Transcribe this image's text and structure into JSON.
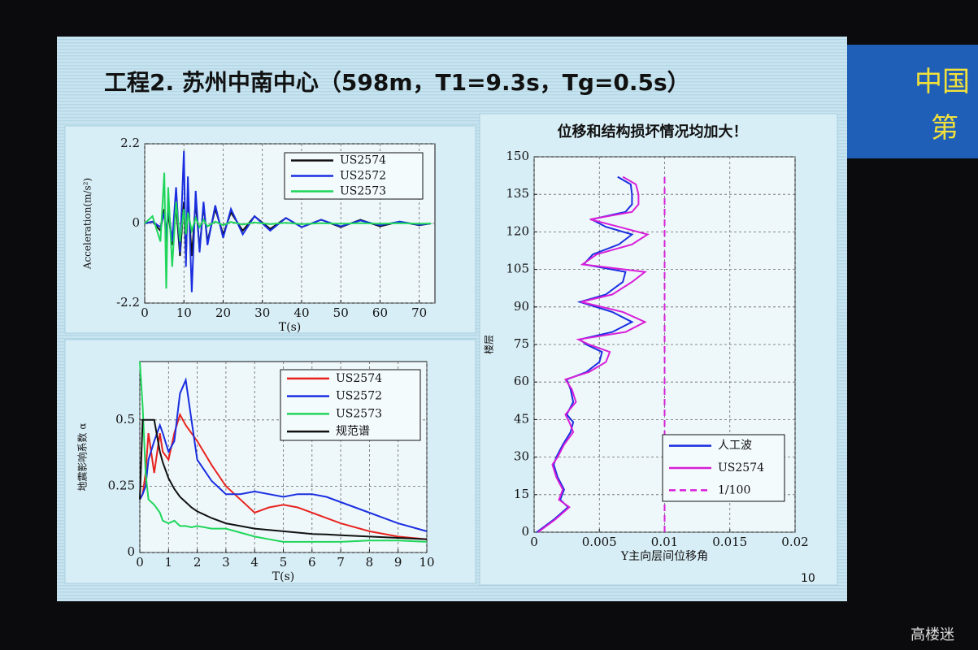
{
  "slide": {
    "title": "工程2. 苏州中南中心（598m，T1=9.3s，Tg=0.5s）",
    "page_number": "10",
    "banner": [
      "中国",
      "第"
    ]
  },
  "watermark": "高楼迷",
  "chart_data": [
    {
      "type": "line",
      "xlabel": "T(s)",
      "ylabel": "Acceleration(m/s²)",
      "xlim": [
        0,
        74
      ],
      "ylim": [
        -2.2,
        2.2
      ],
      "xticks": [
        0,
        10,
        20,
        30,
        40,
        50,
        60,
        70
      ],
      "yticks": [
        -2.2,
        0,
        2.2
      ],
      "grid": true,
      "x": [
        0,
        2,
        4,
        5,
        5.5,
        6,
        7,
        8,
        9,
        10,
        10.5,
        11,
        12,
        13,
        14,
        15,
        16,
        18,
        20,
        22,
        25,
        28,
        32,
        36,
        40,
        45,
        50,
        55,
        60,
        65,
        70,
        73
      ],
      "series": [
        {
          "name": "US2574",
          "color": "#111111",
          "values": [
            0,
            0.05,
            -0.2,
            0.4,
            -0.5,
            0.3,
            -0.6,
            0.5,
            -0.9,
            0.6,
            -1.0,
            0.8,
            -0.9,
            0.6,
            -0.7,
            0.5,
            -0.5,
            0.4,
            -0.3,
            0.3,
            -0.2,
            0.2,
            -0.15,
            0.15,
            -0.1,
            0.1,
            -0.1,
            0.1,
            -0.08,
            0.05,
            -0.05,
            0
          ]
        },
        {
          "name": "US2572",
          "color": "#1a2ee0",
          "values": [
            0,
            0.05,
            -0.1,
            0.3,
            -0.4,
            0.5,
            -0.5,
            1.0,
            -0.8,
            2.0,
            -1.2,
            1.3,
            -1.9,
            0.9,
            -0.8,
            0.6,
            -0.6,
            0.5,
            -0.4,
            0.4,
            -0.3,
            0.2,
            -0.2,
            0.15,
            -0.1,
            0.1,
            -0.08,
            0.08,
            -0.05,
            0.05,
            -0.04,
            0
          ]
        },
        {
          "name": "US2573",
          "color": "#1fd65a",
          "values": [
            0,
            0.2,
            -0.5,
            1.4,
            -1.8,
            1.0,
            -1.2,
            0.6,
            -0.5,
            0.4,
            -0.3,
            0.3,
            -0.2,
            0.15,
            -0.1,
            0.1,
            -0.08,
            0.05,
            -0.05,
            0.04,
            -0.03,
            0.03,
            -0.02,
            0.02,
            -0.02,
            0.01,
            -0.01,
            0.01,
            -0.01,
            0.01,
            -0.01,
            0
          ]
        }
      ]
    },
    {
      "type": "line",
      "xlabel": "T(s)",
      "ylabel": "地震影响系数 α",
      "xlim": [
        0,
        10
      ],
      "ylim": [
        0,
        0.72
      ],
      "xticks": [
        0,
        1,
        2,
        3,
        4,
        5,
        6,
        7,
        8,
        9,
        10
      ],
      "yticks": [
        0,
        0.25,
        0.5
      ],
      "grid": true,
      "x": [
        0,
        0.1,
        0.2,
        0.3,
        0.5,
        0.7,
        0.8,
        1,
        1.2,
        1.4,
        1.6,
        1.8,
        2,
        2.5,
        3,
        3.5,
        4,
        4.5,
        5,
        5.5,
        6,
        6.5,
        7,
        8,
        9,
        10
      ],
      "series": [
        {
          "name": "US2574",
          "color": "#e8231f",
          "values": [
            0.2,
            0.22,
            0.3,
            0.45,
            0.3,
            0.45,
            0.38,
            0.35,
            0.45,
            0.52,
            0.48,
            0.45,
            0.42,
            0.33,
            0.25,
            0.2,
            0.15,
            0.17,
            0.18,
            0.17,
            0.15,
            0.13,
            0.11,
            0.08,
            0.06,
            0.05
          ]
        },
        {
          "name": "US2572",
          "color": "#1a2ee0",
          "values": [
            0.2,
            0.22,
            0.25,
            0.35,
            0.42,
            0.48,
            0.45,
            0.38,
            0.42,
            0.6,
            0.65,
            0.5,
            0.35,
            0.27,
            0.22,
            0.22,
            0.23,
            0.22,
            0.21,
            0.22,
            0.22,
            0.21,
            0.19,
            0.15,
            0.11,
            0.08
          ]
        },
        {
          "name": "US2573",
          "color": "#1fd65a",
          "values": [
            0.72,
            0.55,
            0.3,
            0.2,
            0.18,
            0.15,
            0.12,
            0.11,
            0.12,
            0.1,
            0.1,
            0.095,
            0.1,
            0.09,
            0.09,
            0.075,
            0.06,
            0.05,
            0.04,
            0.04,
            0.04,
            0.04,
            0.04,
            0.045,
            0.045,
            0.04
          ]
        },
        {
          "name": "规范谱",
          "color": "#111111",
          "values": [
            0.2,
            0.5,
            0.5,
            0.5,
            0.5,
            0.38,
            0.34,
            0.28,
            0.24,
            0.21,
            0.19,
            0.17,
            0.155,
            0.13,
            0.11,
            0.1,
            0.09,
            0.085,
            0.08,
            0.075,
            0.07,
            0.068,
            0.065,
            0.06,
            0.055,
            0.05
          ]
        }
      ]
    },
    {
      "type": "profile",
      "title": "位移和结构损坏情况均加大！",
      "xlabel": "Y主向层间位移角",
      "ylabel": "楼层",
      "xlim": [
        0,
        0.02
      ],
      "ylim": [
        0,
        150
      ],
      "xticks": [
        0,
        0.005,
        0.01,
        0.015,
        0.02
      ],
      "yticks": [
        0,
        15,
        30,
        45,
        60,
        75,
        90,
        105,
        120,
        135,
        150
      ],
      "grid": true,
      "series": [
        {
          "name": "人工波",
          "color": "#1a2ee0",
          "y": [
            0,
            5,
            10,
            13,
            17,
            22,
            27,
            30,
            35,
            40,
            44,
            47,
            52,
            57,
            61,
            64,
            68,
            72,
            75,
            77,
            80,
            84,
            88,
            92,
            95,
            100,
            104,
            107,
            111,
            115,
            119,
            122,
            125,
            128,
            131,
            135,
            139,
            142
          ],
          "values": [
            0.0002,
            0.0015,
            0.0026,
            0.002,
            0.0023,
            0.0018,
            0.0015,
            0.0017,
            0.0022,
            0.0028,
            0.003,
            0.0025,
            0.003,
            0.0028,
            0.0025,
            0.004,
            0.005,
            0.0052,
            0.004,
            0.0035,
            0.006,
            0.0075,
            0.006,
            0.0035,
            0.0055,
            0.0068,
            0.007,
            0.0038,
            0.0045,
            0.0065,
            0.0075,
            0.0055,
            0.0044,
            0.007,
            0.0075,
            0.0075,
            0.0074,
            0.0064
          ]
        },
        {
          "name": "US2574",
          "color": "#d81fd8",
          "y": [
            0,
            5,
            10,
            13,
            17,
            22,
            27,
            30,
            35,
            40,
            44,
            47,
            52,
            57,
            61,
            64,
            68,
            72,
            75,
            77,
            80,
            84,
            88,
            92,
            95,
            100,
            104,
            107,
            111,
            115,
            119,
            122,
            125,
            128,
            131,
            135,
            139,
            142
          ],
          "values": [
            0.0003,
            0.0016,
            0.0027,
            0.0019,
            0.0022,
            0.0017,
            0.0014,
            0.0018,
            0.0023,
            0.003,
            0.0027,
            0.0024,
            0.0032,
            0.0029,
            0.0024,
            0.0042,
            0.0055,
            0.0058,
            0.0042,
            0.0034,
            0.007,
            0.0085,
            0.0068,
            0.0036,
            0.006,
            0.0075,
            0.0085,
            0.0037,
            0.0048,
            0.0075,
            0.0087,
            0.0065,
            0.0043,
            0.0075,
            0.008,
            0.008,
            0.0078,
            0.0068
          ]
        },
        {
          "name": "1/100",
          "color": "#d81fd8",
          "dash": true,
          "y": [
            0,
            142
          ],
          "values": [
            0.01,
            0.01
          ]
        }
      ]
    }
  ]
}
